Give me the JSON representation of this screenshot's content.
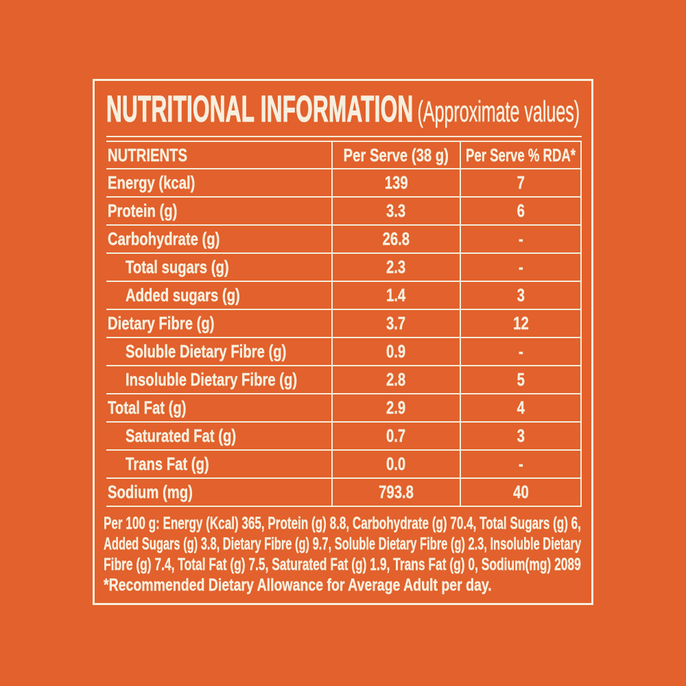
{
  "label": {
    "title": "NUTRITIONAL INFORMATION",
    "subtitle": "(Approximate values)"
  },
  "table": {
    "headers": {
      "nutrients": "NUTRIENTS",
      "per_serve": "Per Serve (38 g)",
      "per_serve_rda": "Per Serve % RDA*"
    },
    "rows": [
      {
        "label": "Energy (kcal)",
        "per_serve": "139",
        "rda": "7"
      },
      {
        "label": "Protein (g)",
        "per_serve": "3.3",
        "rda": "6"
      },
      {
        "label": "Carbohydrate (g)",
        "per_serve": "26.8",
        "rda": "-"
      },
      {
        "label": "Total sugars (g)",
        "per_serve": "2.3",
        "rda": "-"
      },
      {
        "label": "Added sugars (g)",
        "per_serve": "1.4",
        "rda": "3"
      },
      {
        "label": "Dietary Fibre (g)",
        "per_serve": "3.7",
        "rda": "12"
      },
      {
        "label": "Soluble Dietary Fibre (g)",
        "per_serve": "0.9",
        "rda": "-"
      },
      {
        "label": "Insoluble Dietary Fibre (g)",
        "per_serve": "2.8",
        "rda": "5"
      },
      {
        "label": "Total Fat (g)",
        "per_serve": "2.9",
        "rda": "4"
      },
      {
        "label": "Saturated Fat (g)",
        "per_serve": "0.7",
        "rda": "3"
      },
      {
        "label": "Trans Fat (g)",
        "per_serve": "0.0",
        "rda": "-"
      },
      {
        "label": "Sodium (mg)",
        "per_serve": "793.8",
        "rda": "40"
      }
    ]
  },
  "footnotes": {
    "lines": [
      "Per 100 g: Energy (Kcal) 365, Protein (g) 8.8, Carbohydrate (g) 70.4, Total Sugars (g) 6,",
      "Added Sugars (g) 3.8, Dietary Fibre (g) 9.7, Soluble Dietary Fibre (g) 2.3, Insoluble Dietary",
      "Fibre (g) 7.4, Total Fat (g) 7.5, Saturated Fat (g) 1.9, Trans Fat (g) 0, Sodium(mg) 2089",
      "*Recommended Dietary Allowance for Average Adult per day."
    ]
  },
  "colors": {
    "background": "#E2612C",
    "text": "#F6EFDF"
  }
}
